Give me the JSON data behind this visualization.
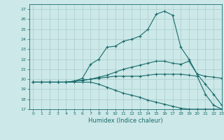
{
  "title": "",
  "xlabel": "Humidex (Indice chaleur)",
  "background_color": "#cce8e8",
  "grid_color": "#aacccc",
  "line_color": "#1a6b6b",
  "xlim": [
    -0.5,
    23
  ],
  "ylim": [
    17,
    27.5
  ],
  "xticks": [
    0,
    1,
    2,
    3,
    4,
    5,
    6,
    7,
    8,
    9,
    10,
    11,
    12,
    13,
    14,
    15,
    16,
    17,
    18,
    19,
    20,
    21,
    22,
    23
  ],
  "yticks": [
    17,
    18,
    19,
    20,
    21,
    22,
    23,
    24,
    25,
    26,
    27
  ],
  "line1_x": [
    0,
    1,
    2,
    3,
    4,
    5,
    6,
    7,
    8,
    9,
    10,
    11,
    12,
    13,
    14,
    15,
    16,
    17,
    18,
    19,
    20,
    21,
    22,
    23
  ],
  "line1_y": [
    19.7,
    19.7,
    19.7,
    19.7,
    19.7,
    19.8,
    20.1,
    21.5,
    22.0,
    23.2,
    23.3,
    23.8,
    24.0,
    24.3,
    25.0,
    26.5,
    26.8,
    26.4,
    23.2,
    22.0,
    20.5,
    20.3,
    20.2,
    20.1
  ],
  "line2_x": [
    0,
    1,
    2,
    3,
    4,
    5,
    6,
    7,
    8,
    9,
    10,
    11,
    12,
    13,
    14,
    15,
    16,
    17,
    18,
    19,
    20,
    21,
    22,
    23
  ],
  "line2_y": [
    19.7,
    19.7,
    19.7,
    19.7,
    19.7,
    19.8,
    19.9,
    20.0,
    20.2,
    20.4,
    20.7,
    21.0,
    21.2,
    21.4,
    21.6,
    21.8,
    21.8,
    21.6,
    21.5,
    21.8,
    20.5,
    19.5,
    18.5,
    17.4
  ],
  "line3_x": [
    0,
    1,
    2,
    3,
    4,
    5,
    6,
    7,
    8,
    9,
    10,
    11,
    12,
    13,
    14,
    15,
    16,
    17,
    18,
    19,
    20,
    21,
    22,
    23
  ],
  "line3_y": [
    19.7,
    19.7,
    19.7,
    19.7,
    19.7,
    19.8,
    19.9,
    20.0,
    20.1,
    20.2,
    20.3,
    20.3,
    20.3,
    20.3,
    20.4,
    20.5,
    20.5,
    20.5,
    20.5,
    20.4,
    20.3,
    18.5,
    17.4,
    17.0
  ],
  "line4_x": [
    0,
    1,
    2,
    3,
    4,
    5,
    6,
    7,
    8,
    9,
    10,
    11,
    12,
    13,
    14,
    15,
    16,
    17,
    18,
    19,
    20,
    21,
    22,
    23
  ],
  "line4_y": [
    19.7,
    19.7,
    19.7,
    19.7,
    19.7,
    19.7,
    19.7,
    19.7,
    19.5,
    19.2,
    18.9,
    18.6,
    18.4,
    18.2,
    17.9,
    17.7,
    17.5,
    17.3,
    17.1,
    17.0,
    17.0,
    17.0,
    17.0,
    17.0
  ]
}
